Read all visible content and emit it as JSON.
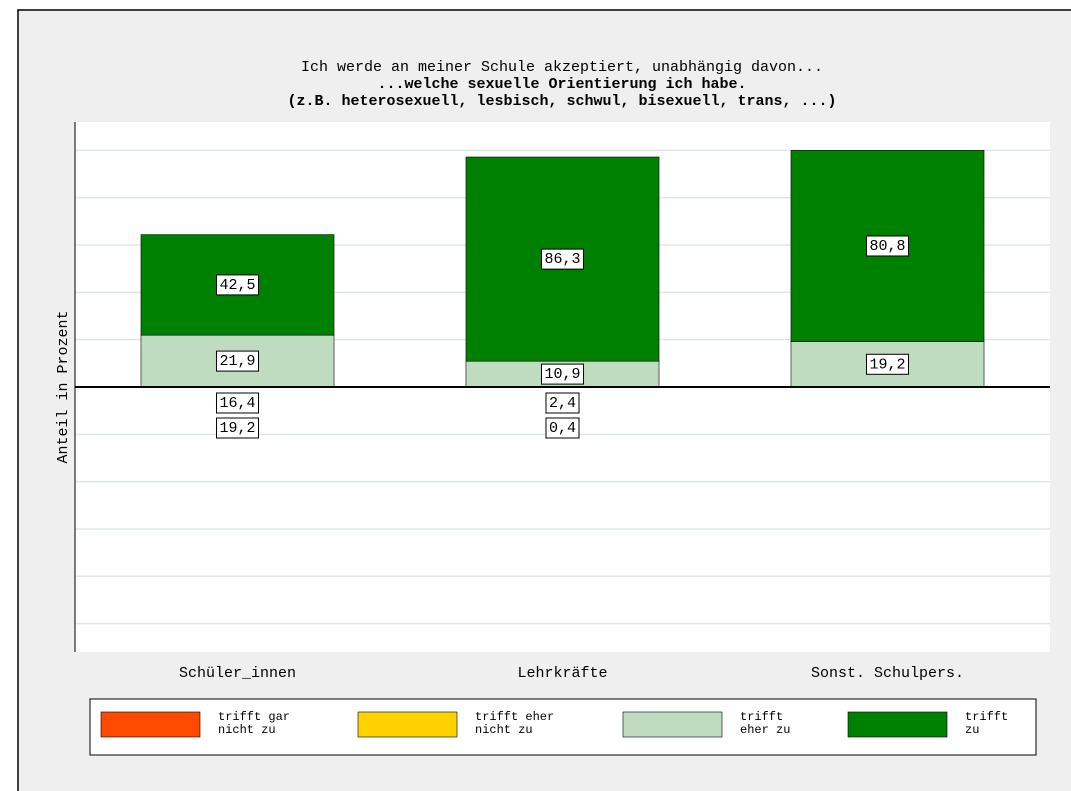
{
  "chart_data": {
    "type": "diverging_stacked_bar",
    "title": "Ich werde an meiner Schule akzeptiert, unabhängig davon...",
    "subtitle": [
      "...welche sexuelle Orientierung ich habe.",
      "(z.B. heterosexuell, lesbisch, schwul, bisexuell, trans, ...)"
    ],
    "y_label": "Anteil in Prozent",
    "categories": [
      "Schüler_innen",
      "Lehrkräfte",
      "Sonst. Schulpers."
    ],
    "series": [
      {
        "name": "trifft gar nicht zu",
        "color": "#ff4a00",
        "negative": true,
        "values": [
          19.2,
          0.4,
          null
        ],
        "value_labels": [
          "19,2",
          "0,4",
          null
        ]
      },
      {
        "name": "trifft eher nicht zu",
        "color": "#ffd200",
        "negative": true,
        "values": [
          16.4,
          2.4,
          null
        ],
        "value_labels": [
          "16,4",
          "2,4",
          null
        ]
      },
      {
        "name": "trifft eher zu",
        "color": "#c0dcc0",
        "values": [
          21.9,
          10.9,
          19.2
        ],
        "value_labels": [
          "21,9",
          "10,9",
          "19,2"
        ]
      },
      {
        "name": "trifft zu",
        "color": "#008000",
        "values": [
          42.5,
          86.3,
          80.8
        ],
        "value_labels": [
          "42,5",
          "86,3",
          "80,8"
        ]
      }
    ],
    "ylim": [
      -112,
      112
    ],
    "yticks": [
      -100,
      -80,
      -60,
      -40,
      -20,
      0,
      20,
      40,
      60,
      80,
      100
    ],
    "grid": true,
    "legend": "bottom"
  }
}
